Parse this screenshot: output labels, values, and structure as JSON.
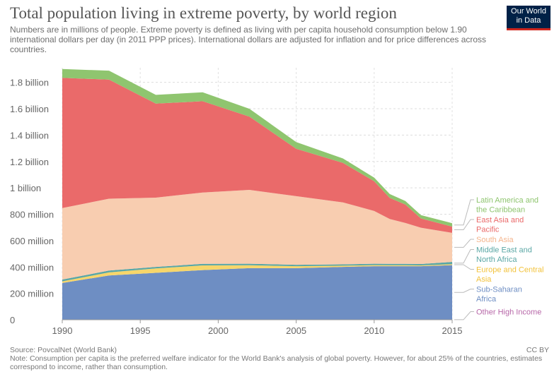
{
  "header": {
    "title": "Total population living in extreme poverty, by world region",
    "subtitle": "Numbers are in millions of people. Extreme poverty is defined as living with per capita household consumption below 1.90 international dollars per day (in 2011 PPP prices). International dollars are adjusted for inflation and for price differences across countries.",
    "logo_line1": "Our World",
    "logo_line2": "in Data"
  },
  "footer": {
    "source": "Source: PovcalNet (World Bank)",
    "note": "Note: Consumption per capita is the preferred welfare indicator for the World Bank's analysis of global poverty. However, for about 25% of the countries, estimates correspond to income, rather than consumption.",
    "license": "CC BY"
  },
  "chart_data": {
    "type": "area",
    "stacked": true,
    "x": [
      1990,
      1993,
      1996,
      1999,
      2002,
      2005,
      2008,
      2010,
      2011,
      2012,
      2013,
      2015
    ],
    "xlim": [
      1990,
      2015
    ],
    "ylim": [
      0,
      1900000000
    ],
    "x_ticks": [
      1990,
      1995,
      2000,
      2005,
      2010,
      2015
    ],
    "x_tick_labels": [
      "1990",
      "1995",
      "2000",
      "2005",
      "2010",
      "2015"
    ],
    "y_ticks": [
      0,
      200000000,
      400000000,
      600000000,
      800000000,
      1000000000,
      1200000000,
      1400000000,
      1600000000,
      1800000000
    ],
    "y_tick_labels": [
      "0",
      "200 million",
      "400 million",
      "600 million",
      "800 million",
      "1 billion",
      "1.2 billion",
      "1.4 billion",
      "1.6 billion",
      "1.8 billion"
    ],
    "grid": true,
    "legend_position": "right",
    "series": [
      {
        "name": "Other High Income",
        "color": "#b767a8",
        "label_lines": [
          "Other High Income"
        ],
        "values": [
          1000000,
          1000000,
          1000000,
          1000000,
          1000000,
          1000000,
          1000000,
          1000000,
          1000000,
          1000000,
          1000000,
          1000000
        ]
      },
      {
        "name": "Sub-Saharan Africa",
        "color": "#6e8ec3",
        "label_lines": [
          "Sub-Saharan",
          "Africa"
        ],
        "values": [
          278000000,
          335000000,
          355000000,
          376000000,
          390000000,
          390000000,
          400000000,
          405000000,
          405000000,
          405000000,
          405000000,
          413000000
        ]
      },
      {
        "name": "Europe and Central Asia",
        "color": "#f7d66a",
        "label_lines": [
          "Europe and Central",
          "Asia"
        ],
        "values": [
          12000000,
          23000000,
          33000000,
          35000000,
          22000000,
          15000000,
          9000000,
          8000000,
          7000000,
          7000000,
          6000000,
          7000000
        ]
      },
      {
        "name": "Middle East and North Africa",
        "color": "#5ba7a5",
        "label_lines": [
          "Middle East and",
          "North Africa"
        ],
        "values": [
          14000000,
          14000000,
          12000000,
          12000000,
          12000000,
          11000000,
          10000000,
          11000000,
          11000000,
          11000000,
          11000000,
          18000000
        ]
      },
      {
        "name": "South Asia",
        "color": "#f8cdb0",
        "label_lines": [
          "South Asia"
        ],
        "values": [
          542000000,
          545000000,
          525000000,
          541000000,
          560000000,
          520000000,
          470000000,
          400000000,
          340000000,
          310000000,
          275000000,
          220000000
        ]
      },
      {
        "name": "East Asia and Pacific",
        "color": "#ea6a6a",
        "label_lines": [
          "East Asia and",
          "Pacific"
        ],
        "values": [
          987000000,
          903000000,
          713000000,
          692000000,
          555000000,
          360000000,
          300000000,
          225000000,
          160000000,
          140000000,
          70000000,
          47000000
        ]
      },
      {
        "name": "Latin America and the Caribbean",
        "color": "#8fc56f",
        "label_lines": [
          "Latin America and",
          "the Caribbean"
        ],
        "values": [
          67000000,
          68000000,
          66000000,
          68000000,
          60000000,
          50000000,
          33000000,
          28000000,
          29000000,
          27000000,
          25000000,
          26000000
        ]
      }
    ]
  }
}
